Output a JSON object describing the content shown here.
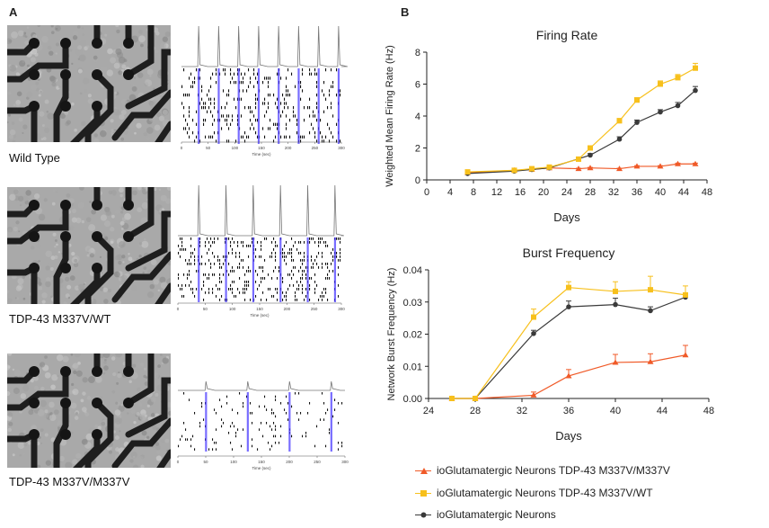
{
  "panels": {
    "a_label": "A",
    "b_label": "B"
  },
  "rows": [
    {
      "label": "Wild Type"
    },
    {
      "label": "TDP-43 M337V/WT"
    },
    {
      "label": "TDP-43 M337V/M337V"
    }
  ],
  "raster": {
    "time_label": "Time (sec)",
    "ticks": [
      "0",
      "50",
      "100",
      "150",
      "200",
      "250",
      "300"
    ]
  },
  "colors": {
    "homozygous": "#f05a28",
    "heterozygous": "#f7c01c",
    "wildtype": "#3a3a3a",
    "raster_burst": "#4b3cff"
  },
  "legend": [
    {
      "label": "ioGlutamatergic Neurons TDP-43 M337V/M337V",
      "marker": "triangle",
      "series": "homozygous"
    },
    {
      "label": "ioGlutamatergic Neurons TDP-43 M337V/WT",
      "marker": "square",
      "series": "heterozygous"
    },
    {
      "label": "ioGlutamatergic Neurons",
      "marker": "circle",
      "series": "wildtype"
    }
  ],
  "chart_data": [
    {
      "type": "line",
      "title": "Firing Rate",
      "xlabel": "Days",
      "ylabel": "Weighted Mean Firing Rate (Hz)",
      "xlim": [
        0,
        48
      ],
      "ylim": [
        0,
        8
      ],
      "xticks": [
        0,
        4,
        8,
        12,
        16,
        20,
        24,
        28,
        32,
        36,
        40,
        44,
        48
      ],
      "yticks": [
        0,
        2,
        4,
        6,
        8
      ],
      "series": [
        {
          "key": "wildtype",
          "name": "ioGlutamatergic Neurons",
          "x": [
            7,
            15,
            18,
            21,
            28,
            33,
            36,
            40,
            43,
            46
          ],
          "y": [
            0.4,
            0.55,
            0.65,
            0.75,
            1.55,
            2.55,
            3.6,
            4.25,
            4.65,
            5.6
          ],
          "err": [
            0.05,
            0.05,
            0.05,
            0.05,
            0.1,
            0.15,
            0.15,
            0.15,
            0.2,
            0.25
          ]
        },
        {
          "key": "heterozygous",
          "name": "ioGlutamatergic Neurons TDP-43 M337V/WT",
          "x": [
            7,
            15,
            18,
            21,
            26,
            28,
            33,
            36,
            40,
            43,
            46
          ],
          "y": [
            0.5,
            0.6,
            0.7,
            0.8,
            1.3,
            2.0,
            3.7,
            5.0,
            6.0,
            6.4,
            7.0
          ],
          "err": [
            0.05,
            0.05,
            0.05,
            0.05,
            0.1,
            0.1,
            0.15,
            0.15,
            0.2,
            0.2,
            0.3
          ]
        },
        {
          "key": "homozygous",
          "name": "ioGlutamatergic Neurons TDP-43 M337V/M337V",
          "x": [
            7,
            15,
            18,
            21,
            26,
            28,
            33,
            36,
            40,
            43,
            46
          ],
          "y": [
            0.45,
            0.6,
            0.65,
            0.75,
            0.7,
            0.75,
            0.7,
            0.85,
            0.85,
            1.0,
            1.0
          ],
          "err": [
            0.03,
            0.03,
            0.03,
            0.03,
            0.03,
            0.03,
            0.03,
            0.04,
            0.04,
            0.05,
            0.05
          ]
        }
      ]
    },
    {
      "type": "line",
      "title": "Burst Frequency",
      "xlabel": "Days",
      "ylabel": "Network Burst Frequency (Hz)",
      "xlim": [
        24,
        48
      ],
      "ylim": [
        0,
        0.04
      ],
      "xticks": [
        24,
        28,
        32,
        36,
        40,
        44,
        48
      ],
      "yticks": [
        0.0,
        0.01,
        0.02,
        0.03,
        0.04
      ],
      "ytick_labels": [
        "0.00",
        "0.01",
        "0.02",
        "0.03",
        "0.04"
      ],
      "series": [
        {
          "key": "wildtype",
          "name": "ioGlutamatergic Neurons",
          "x": [
            26,
            28,
            33,
            36,
            40,
            43,
            46
          ],
          "y": [
            0,
            0,
            0.0202,
            0.0285,
            0.0292,
            0.0273,
            0.0315
          ],
          "err": [
            0,
            0,
            0.001,
            0.0018,
            0.002,
            0.0012,
            0.001
          ]
        },
        {
          "key": "heterozygous",
          "name": "ioGlutamatergic Neurons TDP-43 M337V/WT",
          "x": [
            26,
            28,
            33,
            36,
            40,
            43,
            46
          ],
          "y": [
            0,
            0,
            0.0253,
            0.0345,
            0.0333,
            0.0338,
            0.0322
          ],
          "err": [
            0,
            0,
            0.0025,
            0.0018,
            0.003,
            0.0042,
            0.0028
          ]
        },
        {
          "key": "homozygous",
          "name": "ioGlutamatergic Neurons TDP-43 M337V/M337V",
          "x": [
            26,
            28,
            33,
            36,
            40,
            43,
            46
          ],
          "y": [
            0,
            0,
            0.001,
            0.007,
            0.0112,
            0.0114,
            0.0135
          ],
          "err": [
            0,
            0,
            0.001,
            0.002,
            0.0025,
            0.0025,
            0.003
          ]
        }
      ]
    }
  ]
}
